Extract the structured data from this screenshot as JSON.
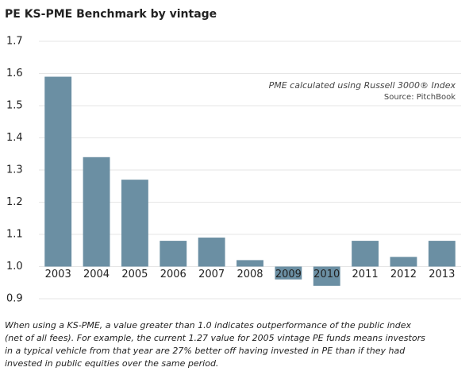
{
  "chart_data": {
    "type": "bar",
    "title": "PE KS-PME Benchmark by vintage",
    "annotations": [
      "PME calculated using Russell 3000® Index",
      "Source: PitchBook"
    ],
    "footnote": [
      "When using a KS-PME, a value greater than 1.0 indicates outperformance of the public index",
      "(net of all fees). For example, the current 1.27 value for 2005 vintage PE funds means investors",
      "in a typical vehicle from that year are 27% better off having invested in PE than if they had",
      "invested in public equities over the same period."
    ],
    "categories": [
      "2003",
      "2004",
      "2005",
      "2006",
      "2007",
      "2008",
      "2009",
      "2010",
      "2011",
      "2012",
      "2013"
    ],
    "values": [
      1.59,
      1.34,
      1.27,
      1.08,
      1.09,
      1.02,
      0.96,
      0.94,
      1.08,
      1.03,
      1.08
    ],
    "color": "#6b8fa3",
    "bar_base": 1.0,
    "ylim": [
      0.9,
      1.7
    ],
    "yticks": [
      0.9,
      {
        "value": 1.0,
        "label": "1.0"
      },
      1.1,
      1.2,
      1.3,
      1.4,
      1.5,
      1.6,
      1.7
    ],
    "grid": true
  }
}
